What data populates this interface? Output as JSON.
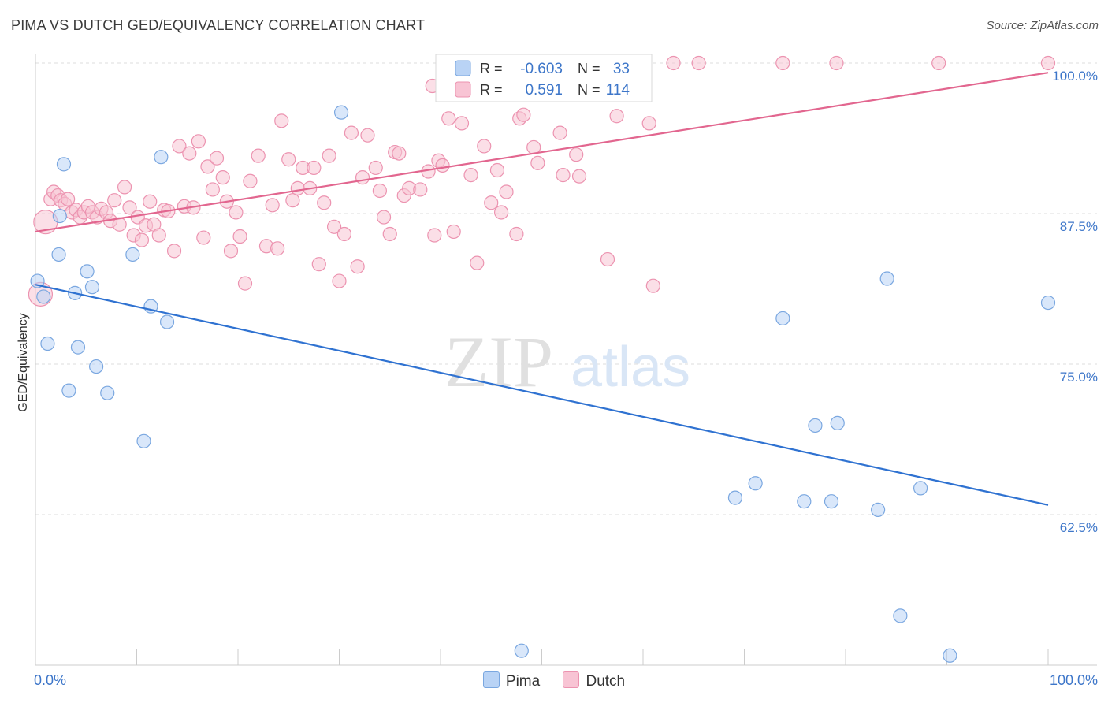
{
  "title": "PIMA VS DUTCH GED/EQUIVALENCY CORRELATION CHART",
  "source": "Source: ZipAtlas.com",
  "watermark": {
    "zip": "ZIP",
    "atlas": "atlas"
  },
  "colors": {
    "pima_fill": "#b9d3f5",
    "pima_stroke": "#7aa7e0",
    "pima_line": "#2f72d1",
    "dutch_fill": "#f8c4d4",
    "dutch_stroke": "#ec93b0",
    "dutch_line": "#e2668f",
    "tick_label": "#3d76c9",
    "grid": "#dcdcdc"
  },
  "legend": {
    "rows": [
      {
        "series": "Pima",
        "r_label": "R =",
        "r_value": "-0.603",
        "n_label": "N =",
        "n_value": "33"
      },
      {
        "series": "Dutch",
        "r_label": "R =",
        "r_value": "0.591",
        "n_label": "N =",
        "n_value": "114"
      }
    ],
    "bottom": [
      "Pima",
      "Dutch"
    ]
  },
  "chart_data": {
    "type": "scatter",
    "ylabel": "GED/Equivalency",
    "xlim": [
      0,
      100
    ],
    "ylim": [
      50,
      100
    ],
    "x_tick_labels": [
      "0.0%",
      "100.0%"
    ],
    "y_ticks": [
      62.5,
      75.0,
      87.5,
      100.0
    ],
    "y_tick_labels": [
      "62.5%",
      "75.0%",
      "87.5%",
      "100.0%"
    ],
    "series": [
      {
        "name": "Pima",
        "trend": [
          [
            0,
            81.6
          ],
          [
            100,
            63.3
          ]
        ],
        "points": [
          [
            0.2,
            81.9
          ],
          [
            0.8,
            80.6
          ],
          [
            1.2,
            76.7
          ],
          [
            2.3,
            84.1
          ],
          [
            2.4,
            87.3
          ],
          [
            2.8,
            91.6
          ],
          [
            3.3,
            72.8
          ],
          [
            3.9,
            80.9
          ],
          [
            4.2,
            76.4
          ],
          [
            5.1,
            82.7
          ],
          [
            5.6,
            81.4
          ],
          [
            6.0,
            74.8
          ],
          [
            7.1,
            72.6
          ],
          [
            9.6,
            84.1
          ],
          [
            10.7,
            68.6
          ],
          [
            11.4,
            79.8
          ],
          [
            12.4,
            92.2
          ],
          [
            13.0,
            78.5
          ],
          [
            30.2,
            95.9
          ],
          [
            48.0,
            51.2
          ],
          [
            69.1,
            63.9
          ],
          [
            71.1,
            65.1
          ],
          [
            73.8,
            78.8
          ],
          [
            75.9,
            63.6
          ],
          [
            77.0,
            69.9
          ],
          [
            78.6,
            63.6
          ],
          [
            79.2,
            70.1
          ],
          [
            83.2,
            62.9
          ],
          [
            84.1,
            82.1
          ],
          [
            85.4,
            54.1
          ],
          [
            87.4,
            64.7
          ],
          [
            90.3,
            50.8
          ],
          [
            100.0,
            80.1
          ]
        ]
      },
      {
        "name": "Dutch",
        "trend": [
          [
            0,
            86.0
          ],
          [
            100,
            99.2
          ]
        ],
        "points": [
          [
            1.0,
            86.8
          ],
          [
            0.5,
            80.8
          ],
          [
            1.5,
            88.7
          ],
          [
            1.8,
            89.3
          ],
          [
            2.2,
            89.0
          ],
          [
            2.5,
            88.6
          ],
          [
            2.9,
            88.3
          ],
          [
            3.2,
            88.7
          ],
          [
            3.6,
            87.6
          ],
          [
            4.0,
            87.8
          ],
          [
            4.4,
            87.2
          ],
          [
            4.8,
            87.6
          ],
          [
            5.2,
            88.1
          ],
          [
            5.6,
            87.6
          ],
          [
            6.1,
            87.2
          ],
          [
            6.5,
            87.9
          ],
          [
            7.0,
            87.6
          ],
          [
            7.4,
            86.9
          ],
          [
            7.8,
            88.6
          ],
          [
            8.3,
            86.6
          ],
          [
            8.8,
            89.7
          ],
          [
            9.3,
            88.0
          ],
          [
            9.7,
            85.7
          ],
          [
            10.1,
            87.2
          ],
          [
            10.5,
            85.3
          ],
          [
            10.9,
            86.5
          ],
          [
            11.3,
            88.5
          ],
          [
            11.7,
            86.6
          ],
          [
            12.2,
            85.7
          ],
          [
            12.7,
            87.8
          ],
          [
            13.1,
            87.7
          ],
          [
            13.7,
            84.4
          ],
          [
            14.2,
            93.1
          ],
          [
            14.7,
            88.1
          ],
          [
            15.2,
            92.5
          ],
          [
            15.6,
            88.0
          ],
          [
            16.1,
            93.5
          ],
          [
            16.6,
            85.5
          ],
          [
            17.0,
            91.4
          ],
          [
            17.5,
            89.5
          ],
          [
            17.9,
            92.1
          ],
          [
            18.5,
            90.5
          ],
          [
            18.9,
            88.5
          ],
          [
            19.3,
            84.4
          ],
          [
            19.8,
            87.6
          ],
          [
            20.2,
            85.6
          ],
          [
            20.7,
            81.7
          ],
          [
            21.2,
            90.2
          ],
          [
            22.0,
            92.3
          ],
          [
            22.8,
            84.8
          ],
          [
            23.4,
            88.2
          ],
          [
            23.9,
            84.6
          ],
          [
            24.3,
            95.2
          ],
          [
            25.0,
            92.0
          ],
          [
            25.4,
            88.6
          ],
          [
            25.9,
            89.6
          ],
          [
            26.4,
            91.3
          ],
          [
            27.1,
            89.6
          ],
          [
            27.5,
            91.3
          ],
          [
            28.0,
            83.3
          ],
          [
            28.5,
            88.4
          ],
          [
            29.0,
            92.3
          ],
          [
            29.5,
            86.4
          ],
          [
            30.0,
            81.9
          ],
          [
            30.5,
            85.8
          ],
          [
            31.2,
            94.2
          ],
          [
            31.8,
            83.1
          ],
          [
            32.3,
            90.5
          ],
          [
            32.8,
            94.0
          ],
          [
            33.6,
            91.3
          ],
          [
            34.0,
            89.4
          ],
          [
            34.4,
            87.2
          ],
          [
            35.0,
            85.8
          ],
          [
            35.5,
            92.6
          ],
          [
            35.9,
            92.5
          ],
          [
            36.4,
            89.0
          ],
          [
            36.9,
            89.6
          ],
          [
            38.0,
            89.5
          ],
          [
            38.8,
            91.0
          ],
          [
            39.4,
            85.7
          ],
          [
            39.8,
            91.9
          ],
          [
            40.2,
            91.5
          ],
          [
            40.8,
            95.4
          ],
          [
            41.3,
            86.0
          ],
          [
            42.1,
            95.0
          ],
          [
            43.0,
            90.7
          ],
          [
            43.6,
            83.4
          ],
          [
            44.3,
            93.1
          ],
          [
            45.0,
            88.4
          ],
          [
            45.6,
            91.1
          ],
          [
            46.0,
            87.6
          ],
          [
            46.5,
            89.3
          ],
          [
            47.5,
            85.8
          ],
          [
            47.8,
            95.4
          ],
          [
            48.2,
            95.7
          ],
          [
            49.2,
            93.0
          ],
          [
            49.6,
            91.7
          ],
          [
            50.8,
            99.0
          ],
          [
            51.8,
            94.2
          ],
          [
            52.1,
            90.7
          ],
          [
            53.4,
            92.4
          ],
          [
            53.7,
            90.6
          ],
          [
            54.9,
            97.5
          ],
          [
            56.5,
            83.7
          ],
          [
            57.4,
            95.6
          ],
          [
            60.6,
            95.0
          ],
          [
            61.0,
            81.5
          ],
          [
            63.0,
            100.0
          ],
          [
            65.5,
            100.0
          ],
          [
            73.8,
            100.0
          ],
          [
            79.1,
            100.0
          ],
          [
            89.2,
            100.0
          ],
          [
            100.0,
            100.0
          ],
          [
            39.2,
            98.1
          ]
        ]
      }
    ]
  }
}
